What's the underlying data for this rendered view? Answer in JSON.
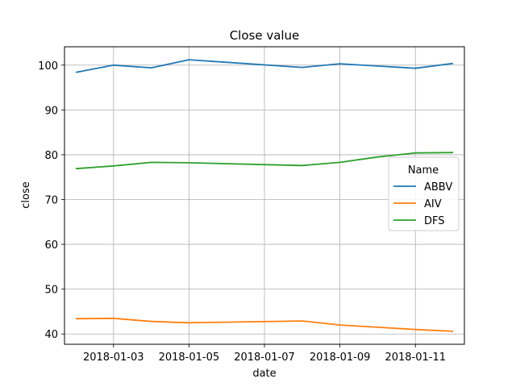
{
  "chart_data": {
    "type": "line",
    "title": "Close value",
    "xlabel": "date",
    "ylabel": "close",
    "grid": true,
    "legend": {
      "title": "Name",
      "placement": "center-right"
    },
    "x": [
      "2018-01-02",
      "2018-01-03",
      "2018-01-04",
      "2018-01-05",
      "2018-01-08",
      "2018-01-09",
      "2018-01-10",
      "2018-01-11",
      "2018-01-12"
    ],
    "xticks": [
      "2018-01-03",
      "2018-01-05",
      "2018-01-07",
      "2018-01-09",
      "2018-01-11"
    ],
    "yticks": [
      40,
      50,
      60,
      70,
      80,
      90,
      100
    ],
    "xlim": [
      "2018-01-01T16:50",
      "2018-01-12T07:10"
    ],
    "ylim": [
      37.7,
      104.1
    ],
    "series": [
      {
        "name": "ABBV",
        "color": "#1f77b4",
        "values": [
          98.4,
          100.0,
          99.4,
          101.2,
          99.5,
          100.3,
          99.8,
          99.3,
          100.4
        ]
      },
      {
        "name": "AIV",
        "color": "#ff7f0e",
        "values": [
          43.4,
          43.5,
          42.8,
          42.5,
          42.9,
          42.0,
          41.5,
          41.0,
          40.6
        ]
      },
      {
        "name": "DFS",
        "color": "#2ca02c",
        "values": [
          76.9,
          77.5,
          78.3,
          78.2,
          77.6,
          78.3,
          79.5,
          80.4,
          80.5
        ]
      }
    ]
  }
}
